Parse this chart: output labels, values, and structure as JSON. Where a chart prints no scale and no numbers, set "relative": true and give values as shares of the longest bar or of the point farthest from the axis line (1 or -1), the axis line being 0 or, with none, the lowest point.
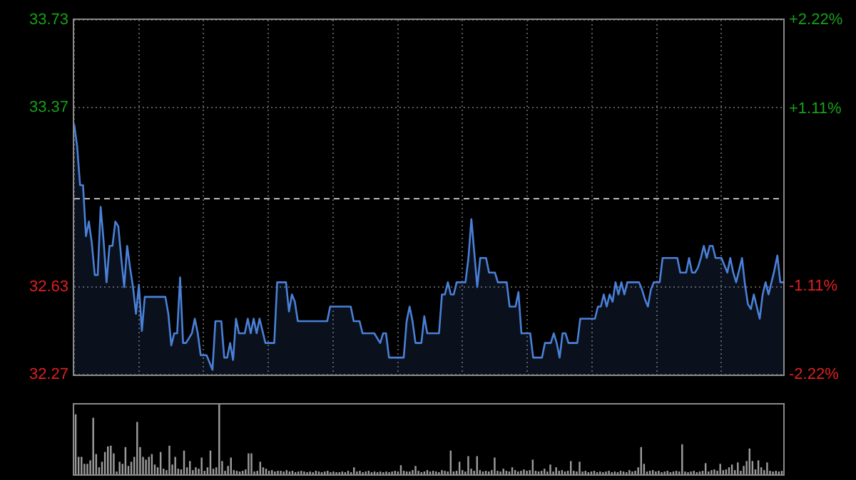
{
  "chart_data": [
    {
      "type": "area",
      "color": "#4a80d8",
      "tick_labels": "y",
      "grid": true,
      "categories": [
        null,
        null,
        null,
        null,
        null,
        null,
        null,
        null,
        null,
        null,
        null,
        null,
        null,
        null,
        null,
        null,
        null,
        null,
        null,
        null,
        null,
        null,
        null,
        null,
        null,
        null,
        null,
        null,
        null,
        null,
        null,
        null,
        null,
        null,
        null,
        null,
        null,
        null,
        null,
        null,
        null,
        null,
        null,
        null,
        null,
        null,
        null,
        null,
        null,
        null,
        null,
        null,
        null,
        null,
        null,
        null,
        null,
        null,
        null,
        null,
        null,
        null,
        null,
        null,
        null,
        null,
        null,
        null,
        null,
        null,
        null,
        null,
        null,
        null,
        null,
        null,
        null,
        null,
        null,
        null,
        null,
        null,
        null,
        null,
        null,
        null,
        null,
        null,
        null,
        null,
        null,
        null,
        null,
        null,
        null,
        null,
        null,
        null,
        null,
        null,
        null,
        null,
        null,
        null,
        null,
        null,
        null,
        null,
        null,
        null,
        null,
        null,
        null,
        null,
        null,
        null,
        null,
        null,
        null,
        null,
        null,
        null,
        null,
        null,
        null,
        null,
        null,
        null,
        null,
        null,
        null,
        null,
        null,
        null,
        null,
        null,
        null,
        null,
        null,
        null,
        null,
        null,
        null,
        null,
        null,
        null,
        null,
        null,
        null,
        null,
        null,
        null,
        null,
        null,
        null,
        null,
        null,
        null,
        null,
        null,
        null,
        null,
        null,
        null,
        null,
        null,
        null,
        null,
        null,
        null,
        null,
        null,
        null,
        null,
        null,
        null,
        null,
        null,
        null,
        null,
        null,
        null,
        null,
        null,
        null,
        null,
        null,
        null,
        null,
        null,
        null,
        null,
        null,
        null,
        null,
        null,
        null,
        null,
        null,
        null,
        null,
        null,
        null,
        null,
        null,
        null,
        null,
        null,
        null,
        null,
        null,
        null,
        null,
        null,
        null,
        null,
        null,
        null,
        null,
        null,
        null,
        null,
        null,
        null,
        null,
        null,
        null,
        null,
        null,
        null,
        null,
        null,
        null,
        null,
        null,
        null,
        null,
        null,
        null,
        null,
        null,
        null
      ],
      "ylim": [
        32.27,
        33.73
      ],
      "yticks": [
        32.27,
        32.63,
        33.37,
        33.73
      ],
      "y2lim": [
        -2.22,
        2.22
      ],
      "y2ticks": [
        {
          "value": -2.22,
          "label": "-2.22%"
        },
        {
          "value": -1.11,
          "label": "-1.11%"
        },
        {
          "value": 1.11,
          "label": "+1.11%"
        },
        {
          "value": 2.22,
          "label": "+2.22%"
        }
      ],
      "ref_lines": [
        {
          "axis": "y",
          "value": 33.0,
          "label": null,
          "line_style": "dashed"
        }
      ],
      "values": [
        33.3,
        33.21,
        33.05,
        33.05,
        32.84,
        32.9,
        32.81,
        32.68,
        32.68,
        32.96,
        32.82,
        32.65,
        32.8,
        32.8,
        32.9,
        32.88,
        32.75,
        32.63,
        32.8,
        32.71,
        32.63,
        32.52,
        32.64,
        32.45,
        32.59,
        32.59,
        32.59,
        32.59,
        32.59,
        32.59,
        32.59,
        32.59,
        32.52,
        32.39,
        32.44,
        32.44,
        32.67,
        32.4,
        32.4,
        32.42,
        32.44,
        32.5,
        32.44,
        32.35,
        32.35,
        32.35,
        32.32,
        32.29,
        32.49,
        32.49,
        32.49,
        32.34,
        32.34,
        32.4,
        32.33,
        32.5,
        32.44,
        32.44,
        32.44,
        32.5,
        32.44,
        32.5,
        32.44,
        32.5,
        32.45,
        32.4,
        32.4,
        32.4,
        32.4,
        32.65,
        32.65,
        32.65,
        32.65,
        32.53,
        32.6,
        32.57,
        32.49,
        32.49,
        32.49,
        32.49,
        32.49,
        32.49,
        32.49,
        32.49,
        32.49,
        32.49,
        32.49,
        32.55,
        32.55,
        32.55,
        32.55,
        32.55,
        32.55,
        32.55,
        32.55,
        32.49,
        32.49,
        32.49,
        32.44,
        32.44,
        32.44,
        32.44,
        32.44,
        32.42,
        32.4,
        32.44,
        32.44,
        32.34,
        32.34,
        32.34,
        32.34,
        32.34,
        32.34,
        32.49,
        32.55,
        32.49,
        32.4,
        32.4,
        32.4,
        32.51,
        32.44,
        32.44,
        32.44,
        32.44,
        32.44,
        32.6,
        32.6,
        32.65,
        32.6,
        32.6,
        32.65,
        32.65,
        32.65,
        32.65,
        32.75,
        32.91,
        32.77,
        32.63,
        32.75,
        32.75,
        32.75,
        32.69,
        32.69,
        32.69,
        32.65,
        32.65,
        32.65,
        32.65,
        32.55,
        32.55,
        32.55,
        32.61,
        32.44,
        32.44,
        32.44,
        32.44,
        32.34,
        32.34,
        32.34,
        32.34,
        32.4,
        32.4,
        32.4,
        32.44,
        32.4,
        32.34,
        32.44,
        32.44,
        32.4,
        32.4,
        32.4,
        32.4,
        32.5,
        32.5,
        32.5,
        32.5,
        32.5,
        32.5,
        32.55,
        32.55,
        32.6,
        32.55,
        32.6,
        32.57,
        32.65,
        32.6,
        32.65,
        32.6,
        32.65,
        32.65,
        32.65,
        32.65,
        32.65,
        32.62,
        32.58,
        32.55,
        32.62,
        32.65,
        32.65,
        32.65,
        32.75,
        32.75,
        32.75,
        32.75,
        32.75,
        32.75,
        32.69,
        32.69,
        32.69,
        32.75,
        32.69,
        32.69,
        32.71,
        32.75,
        32.8,
        32.75,
        32.8,
        32.8,
        32.75,
        32.75,
        32.75,
        32.72,
        32.69,
        32.75,
        32.69,
        32.65,
        32.7,
        32.75,
        32.64,
        32.56,
        32.54,
        32.6,
        32.55,
        32.5,
        32.6,
        32.65,
        32.6,
        32.65,
        32.7,
        32.76,
        32.65,
        32.65
      ]
    },
    {
      "type": "bar",
      "relative": true,
      "color": "#9a9a9a",
      "categories": [
        null,
        null,
        null,
        null,
        null,
        null,
        null,
        null,
        null,
        null,
        null,
        null,
        null,
        null,
        null,
        null,
        null,
        null,
        null,
        null,
        null,
        null,
        null,
        null,
        null,
        null,
        null,
        null,
        null,
        null,
        null,
        null,
        null,
        null,
        null,
        null,
        null,
        null,
        null,
        null,
        null,
        null,
        null,
        null,
        null,
        null,
        null,
        null,
        null,
        null,
        null,
        null,
        null,
        null,
        null,
        null,
        null,
        null,
        null,
        null,
        null,
        null,
        null,
        null,
        null,
        null,
        null,
        null,
        null,
        null,
        null,
        null,
        null,
        null,
        null,
        null,
        null,
        null,
        null,
        null,
        null,
        null,
        null,
        null,
        null,
        null,
        null,
        null,
        null,
        null,
        null,
        null,
        null,
        null,
        null,
        null,
        null,
        null,
        null,
        null,
        null,
        null,
        null,
        null,
        null,
        null,
        null,
        null,
        null,
        null,
        null,
        null,
        null,
        null,
        null,
        null,
        null,
        null,
        null,
        null,
        null,
        null,
        null,
        null,
        null,
        null,
        null,
        null,
        null,
        null,
        null,
        null,
        null,
        null,
        null,
        null,
        null,
        null,
        null,
        null,
        null,
        null,
        null,
        null,
        null,
        null,
        null,
        null,
        null,
        null,
        null,
        null,
        null,
        null,
        null,
        null,
        null,
        null,
        null,
        null,
        null,
        null,
        null,
        null,
        null,
        null,
        null,
        null,
        null,
        null,
        null,
        null,
        null,
        null,
        null,
        null,
        null,
        null,
        null,
        null,
        null,
        null,
        null,
        null,
        null,
        null,
        null,
        null,
        null,
        null,
        null,
        null,
        null,
        null,
        null,
        null,
        null,
        null,
        null,
        null,
        null,
        null,
        null,
        null,
        null,
        null,
        null,
        null,
        null,
        null,
        null,
        null,
        null,
        null,
        null,
        null,
        null,
        null,
        null,
        null,
        null,
        null,
        null,
        null,
        null,
        null,
        null,
        null,
        null,
        null,
        null,
        null,
        null,
        null,
        null,
        null,
        null,
        null,
        null,
        null,
        null,
        null
      ],
      "values": [
        0.86,
        0.25,
        0.25,
        0.15,
        0.15,
        0.2,
        0.81,
        0.29,
        0.1,
        0.18,
        0.32,
        0.4,
        0.41,
        0.3,
        0.04,
        0.18,
        0.15,
        0.39,
        0.12,
        0.18,
        0.25,
        0.75,
        0.39,
        0.25,
        0.21,
        0.25,
        0.29,
        0.14,
        0.1,
        0.32,
        0.08,
        0.06,
        0.41,
        0.14,
        0.25,
        0.08,
        0.07,
        0.34,
        0.1,
        0.19,
        0.06,
        0.1,
        0.08,
        0.24,
        0.05,
        0.1,
        0.34,
        0.08,
        0.1,
        1,
        0.19,
        0.05,
        0.12,
        0.24,
        0.06,
        0.05,
        0.04,
        0.05,
        0.07,
        0.3,
        0.3,
        0.04,
        0.05,
        0.18,
        0.1,
        0.08,
        0.05,
        0.06,
        0.04,
        0.05,
        0.05,
        0.04,
        0.06,
        0.04,
        0.05,
        0.03,
        0.04,
        0.05,
        0.04,
        0.03,
        0.04,
        0.03,
        0.05,
        0.04,
        0.03,
        0.04,
        0.05,
        0.03,
        0.04,
        0.03,
        0.03,
        0.04,
        0.03,
        0.05,
        0.03,
        0.1,
        0.04,
        0.05,
        0.03,
        0.04,
        0.05,
        0.03,
        0.04,
        0.03,
        0.04,
        0.03,
        0.04,
        0.03,
        0.04,
        0.05,
        0.04,
        0.13,
        0.05,
        0.04,
        0.04,
        0.06,
        0.12,
        0.05,
        0.03,
        0.04,
        0.06,
        0.04,
        0.05,
        0.04,
        0.03,
        0.06,
        0.05,
        0.04,
        0.34,
        0.04,
        0.05,
        0.18,
        0.06,
        0.04,
        0.26,
        0.08,
        0.05,
        0.26,
        0.06,
        0.04,
        0.05,
        0.04,
        0.06,
        0.24,
        0.05,
        0.04,
        0.08,
        0.05,
        0.04,
        0.1,
        0.06,
        0.04,
        0.05,
        0.07,
        0.05,
        0.06,
        0.21,
        0.05,
        0.04,
        0.05,
        0.08,
        0.04,
        0.14,
        0.04,
        0.1,
        0.05,
        0.06,
        0.04,
        0.05,
        0.19,
        0.05,
        0.04,
        0.18,
        0.04,
        0.05,
        0.03,
        0.04,
        0.05,
        0.03,
        0.04,
        0.03,
        0.04,
        0.05,
        0.03,
        0.04,
        0.03,
        0.05,
        0.04,
        0.03,
        0.06,
        0.04,
        0.05,
        0.1,
        0.39,
        0.15,
        0.04,
        0.05,
        0.06,
        0.04,
        0.05,
        0.03,
        0.04,
        0.05,
        0.03,
        0.04,
        0.05,
        0.04,
        0.43,
        0.04,
        0.03,
        0.04,
        0.05,
        0.03,
        0.04,
        0.05,
        0.16,
        0.04,
        0.06,
        0.07,
        0.05,
        0.15,
        0.06,
        0.07,
        0.1,
        0.14,
        0.06,
        0.17,
        0.05,
        0.12,
        0.19,
        0.37,
        0.19,
        0.07,
        0.2,
        0.1,
        0.06,
        0.17,
        0.05,
        0.04,
        0.05,
        0.04,
        0.05
      ]
    }
  ]
}
